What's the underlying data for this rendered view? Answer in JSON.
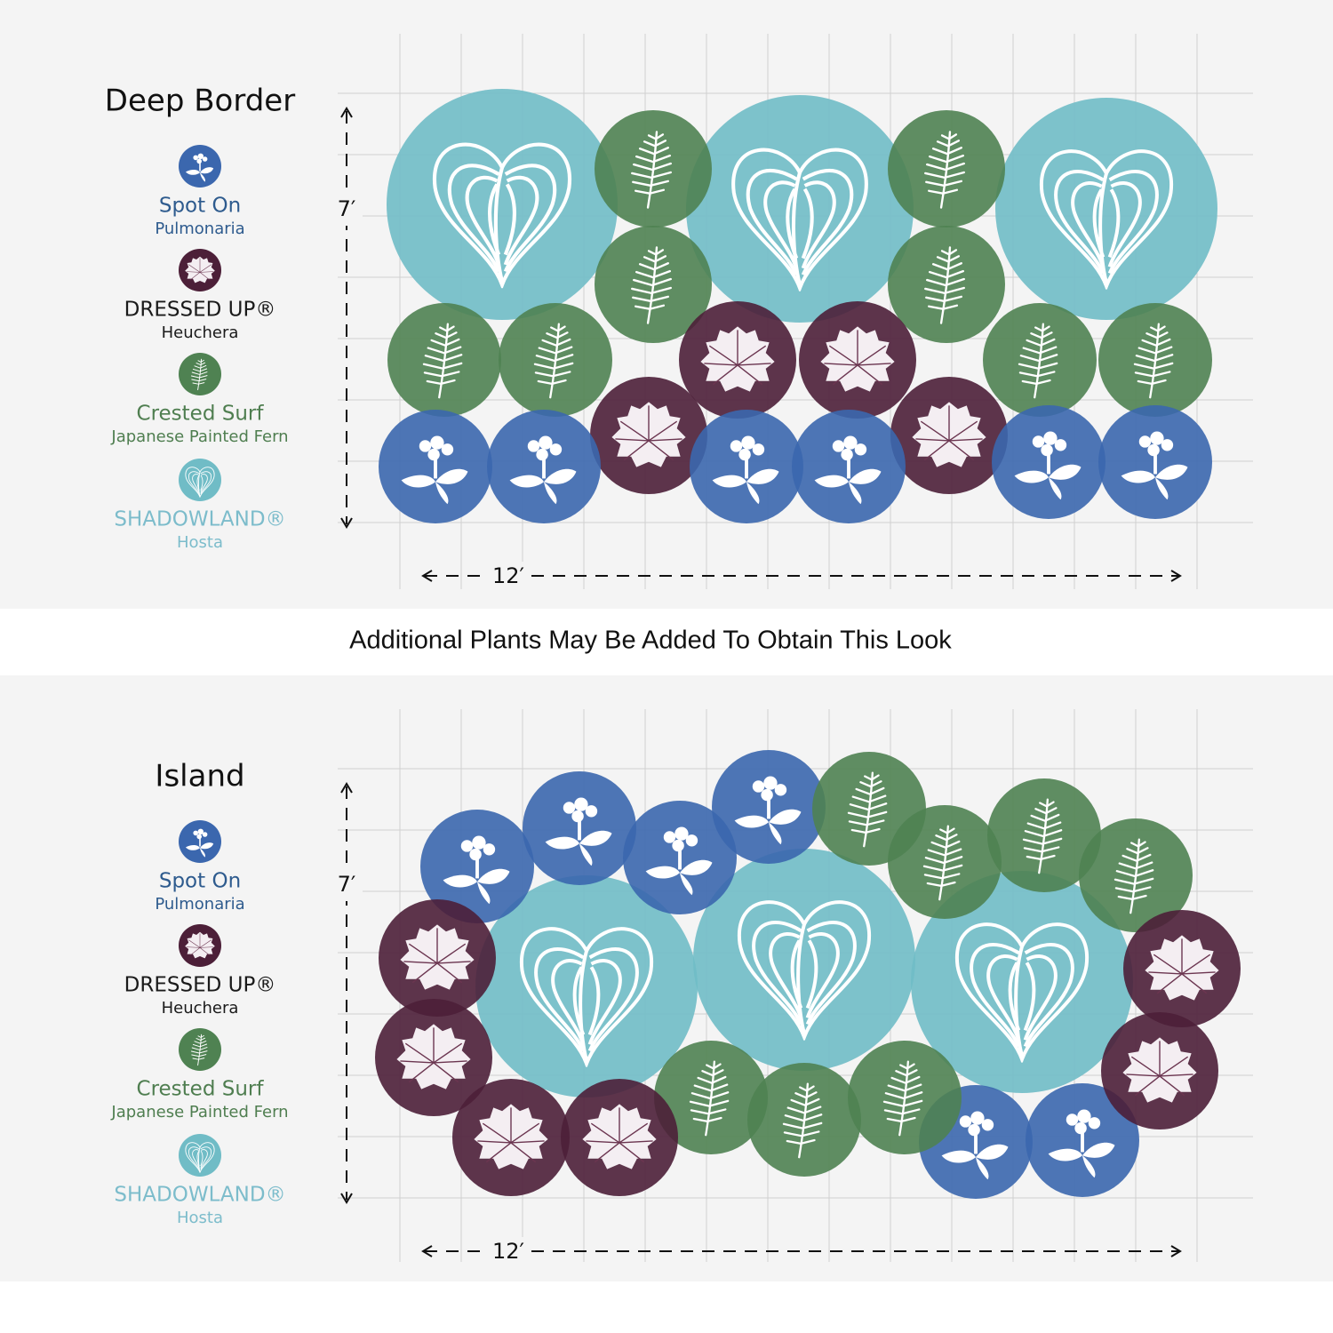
{
  "panels": [
    {
      "title": "Deep Border",
      "legend": [
        {
          "name": "Spot On",
          "species": "Pulmonaria"
        },
        {
          "name": "DRESSED UP®",
          "species": "Heuchera"
        },
        {
          "name": "Crested Surf",
          "species": "Japanese Painted Fern"
        },
        {
          "name": "SHADOWLAND®",
          "species": "Hosta"
        }
      ],
      "height_label": "7′",
      "width_label": "12′"
    },
    {
      "title": "Island",
      "legend": [
        {
          "name": "Spot On",
          "species": "Pulmonaria"
        },
        {
          "name": "DRESSED UP®",
          "species": "Heuchera"
        },
        {
          "name": "Crested Surf",
          "species": "Japanese Painted Fern"
        },
        {
          "name": "SHADOWLAND®",
          "species": "Hosta"
        }
      ],
      "height_label": "7′",
      "width_label": "12′"
    }
  ],
  "banner": "Additional Plants May Be Added To Obtain This Look"
}
